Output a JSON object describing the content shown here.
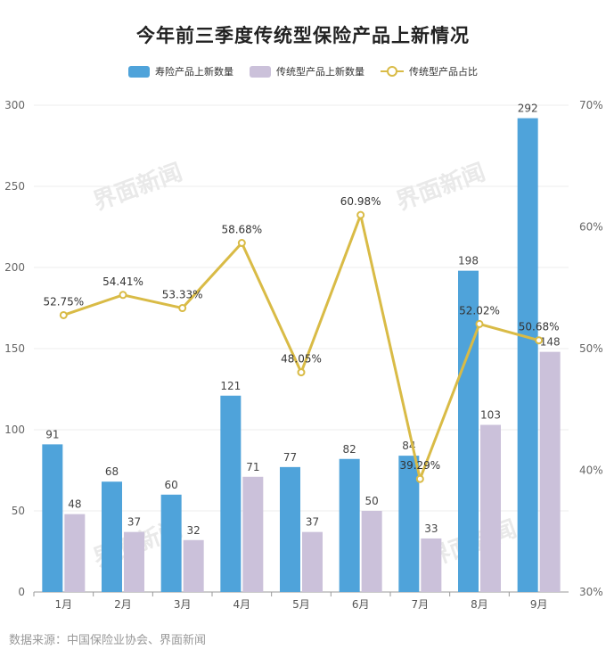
{
  "chart_data": {
    "type": "bar",
    "title": "今年前三季度传统型保险产品上新情况",
    "categories": [
      "1月",
      "2月",
      "3月",
      "4月",
      "5月",
      "6月",
      "7月",
      "8月",
      "9月"
    ],
    "series": [
      {
        "name": "寿险产品上新数量",
        "type": "bar",
        "axis": "left",
        "color": "#4fa3da",
        "values": [
          91,
          68,
          60,
          121,
          77,
          82,
          84,
          198,
          292
        ]
      },
      {
        "name": "传统型产品上新数量",
        "type": "bar",
        "axis": "left",
        "color": "#cbc1da",
        "values": [
          48,
          37,
          32,
          71,
          37,
          50,
          33,
          103,
          148
        ]
      },
      {
        "name": "传统型产品占比",
        "type": "line",
        "axis": "right",
        "color": "#d9bb46",
        "values": [
          52.75,
          54.41,
          53.33,
          58.68,
          48.05,
          60.98,
          39.29,
          52.02,
          50.68
        ],
        "labels": [
          "52.75%",
          "54.41%",
          "53.33%",
          "58.68%",
          "48.05%",
          "60.98%",
          "39.29%",
          "52.02%",
          "50.68%"
        ]
      }
    ],
    "y_left": {
      "ylim": [
        0,
        300
      ],
      "ticks": [
        "0",
        "50",
        "100",
        "150",
        "200",
        "250",
        "300"
      ]
    },
    "y_right": {
      "ylim": [
        30,
        70
      ],
      "ticks": [
        "30%",
        "40%",
        "50%",
        "60%",
        "70%"
      ]
    },
    "grid": true,
    "legend": "top-center"
  },
  "source": "数据来源：中国保险业协会、界面新闻",
  "watermark": "界面新闻"
}
